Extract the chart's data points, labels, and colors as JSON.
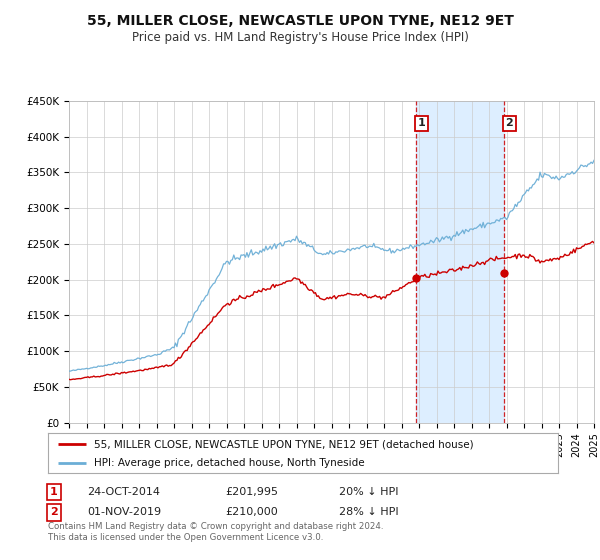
{
  "title": "55, MILLER CLOSE, NEWCASTLE UPON TYNE, NE12 9ET",
  "subtitle": "Price paid vs. HM Land Registry's House Price Index (HPI)",
  "hpi_label": "HPI: Average price, detached house, North Tyneside",
  "property_label": "55, MILLER CLOSE, NEWCASTLE UPON TYNE, NE12 9ET (detached house)",
  "hpi_color": "#6baed6",
  "property_color": "#cc0000",
  "sale1_date_x": 2014.82,
  "sale1_price": 201995,
  "sale1_label": "1",
  "sale1_text": "24-OCT-2014",
  "sale1_amount": "£201,995",
  "sale1_pct": "20% ↓ HPI",
  "sale2_date_x": 2019.84,
  "sale2_price": 210000,
  "sale2_label": "2",
  "sale2_text": "01-NOV-2019",
  "sale2_amount": "£210,000",
  "sale2_pct": "28% ↓ HPI",
  "ylim": [
    0,
    450000
  ],
  "xlim_start": 1995,
  "xlim_end": 2025,
  "footer_line1": "Contains HM Land Registry data © Crown copyright and database right 2024.",
  "footer_line2": "This data is licensed under the Open Government Licence v3.0.",
  "background_color": "#ffffff",
  "grid_color": "#cccccc",
  "shaded_region_color": "#ddeeff",
  "yticks": [
    0,
    50000,
    100000,
    150000,
    200000,
    250000,
    300000,
    350000,
    400000,
    450000
  ],
  "ytick_labels": [
    "£0",
    "£50K",
    "£100K",
    "£150K",
    "£200K",
    "£250K",
    "£300K",
    "£350K",
    "£400K",
    "£450K"
  ]
}
